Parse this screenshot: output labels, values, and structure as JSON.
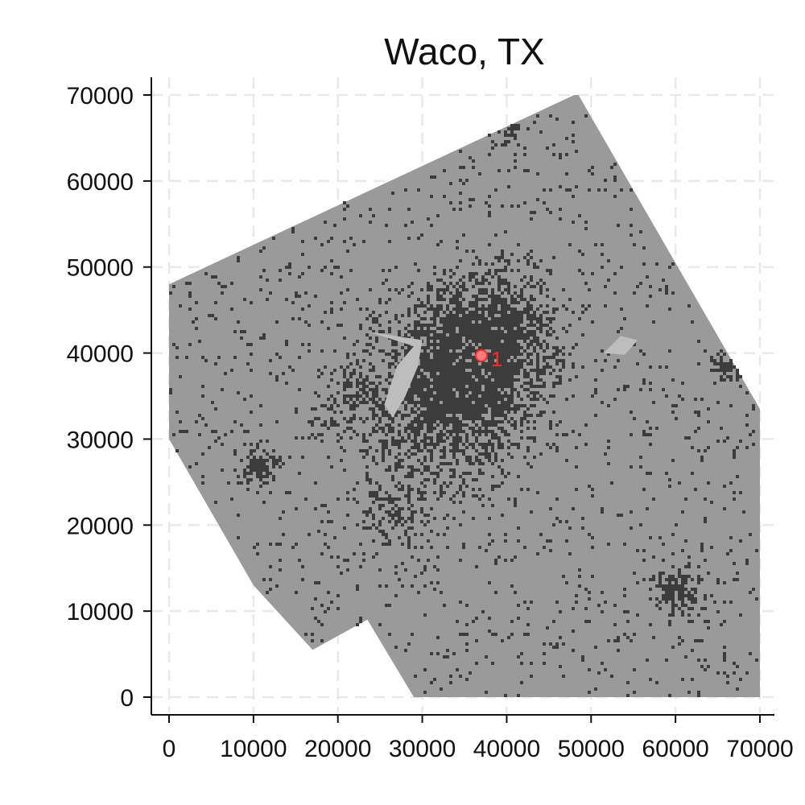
{
  "chart_data": {
    "type": "map",
    "title": "Waco, TX",
    "xlim": [
      0,
      70000
    ],
    "ylim": [
      0,
      70000
    ],
    "x_ticks": [
      0,
      10000,
      20000,
      30000,
      40000,
      50000,
      60000,
      70000
    ],
    "y_ticks": [
      0,
      10000,
      20000,
      30000,
      40000,
      50000,
      60000,
      70000
    ],
    "x_tick_labels": [
      "0",
      "10000",
      "20000",
      "30000",
      "40000",
      "50000",
      "60000",
      "70000"
    ],
    "y_tick_labels": [
      "0",
      "10000",
      "20000",
      "30000",
      "40000",
      "50000",
      "60000",
      "70000"
    ],
    "grid": true,
    "region_boundary": [
      [
        0,
        48000
      ],
      [
        48000,
        70000
      ],
      [
        48500,
        70000
      ],
      [
        70000,
        33500
      ],
      [
        70000,
        0
      ],
      [
        29000,
        0
      ],
      [
        23500,
        9000
      ],
      [
        17000,
        5500
      ],
      [
        10000,
        13000
      ],
      [
        0,
        30000
      ]
    ],
    "water_areas": [
      [
        [
          23500,
          42500
        ],
        [
          29000,
          40800
        ],
        [
          27000,
          38500
        ],
        [
          25500,
          34000
        ],
        [
          26500,
          32500
        ],
        [
          28000,
          35000
        ],
        [
          29500,
          38500
        ],
        [
          30000,
          41500
        ]
      ],
      [
        [
          51500,
          40000
        ],
        [
          53500,
          42000
        ],
        [
          55500,
          41500
        ],
        [
          54000,
          39800
        ]
      ]
    ],
    "marker": {
      "x": 37000,
      "y": 39700,
      "label": "1"
    },
    "colors": {
      "region": "#9a9a9a",
      "developed": "#3c3c3c",
      "water": "#bdbdbd",
      "marker": "#ff2b2b",
      "grid": "#e9e9e9",
      "axis": "#111111"
    }
  }
}
